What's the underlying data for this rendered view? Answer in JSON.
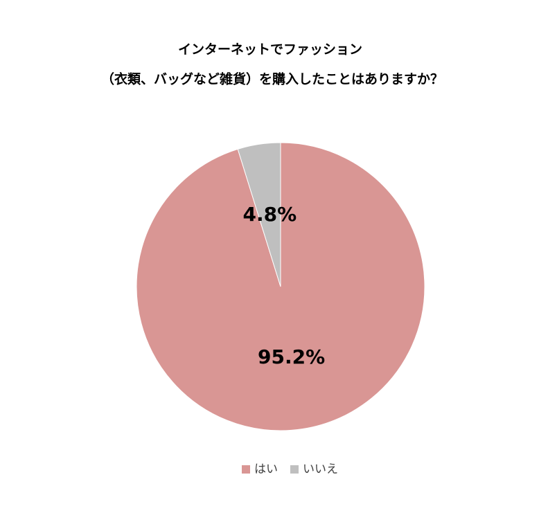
{
  "chart_data": {
    "type": "pie",
    "title": [
      "インターネットでファッション",
      "（衣類、バッグなど雑貨）を購入したことはありますか？"
    ],
    "categories": [
      "はい",
      "いいえ"
    ],
    "values": [
      95.2,
      4.8
    ],
    "value_labels": [
      "95.2%",
      "4.8%"
    ],
    "colors": [
      "#d99694",
      "#bfbfbf"
    ],
    "legend": "bottom"
  }
}
